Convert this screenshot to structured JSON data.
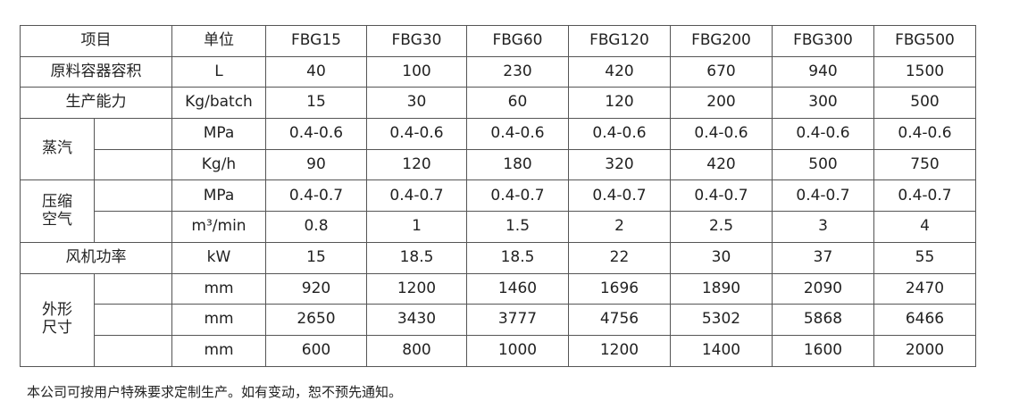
{
  "table": {
    "header": [
      "项目",
      "单位",
      "FBG15",
      "FBG30",
      "FBG60",
      "FBG120",
      "FBG200",
      "FBG300",
      "FBG500"
    ],
    "sections": [
      {
        "label": [
          "原料容器容积"
        ],
        "rows": [
          {
            "unit": "L",
            "values": [
              "40",
              "100",
              "230",
              "420",
              "670",
              "940",
              "1500"
            ]
          }
        ]
      },
      {
        "label": [
          "生产能力"
        ],
        "rows": [
          {
            "unit": "Kg/batch",
            "values": [
              "15",
              "30",
              "60",
              "120",
              "200",
              "300",
              "500"
            ]
          }
        ]
      },
      {
        "label": [
          "蒸汽"
        ],
        "rows": [
          {
            "unit": "MPa",
            "values": [
              "0.4-0.6",
              "0.4-0.6",
              "0.4-0.6",
              "0.4-0.6",
              "0.4-0.6",
              "0.4-0.6",
              "0.4-0.6"
            ]
          },
          {
            "unit": "Kg/h",
            "values": [
              "90",
              "120",
              "180",
              "320",
              "420",
              "500",
              "750"
            ]
          }
        ]
      },
      {
        "label": [
          "压缩",
          "空气"
        ],
        "rows": [
          {
            "unit": "MPa",
            "values": [
              "0.4-0.7",
              "0.4-0.7",
              "0.4-0.7",
              "0.4-0.7",
              "0.4-0.7",
              "0.4-0.7",
              "0.4-0.7"
            ]
          },
          {
            "unit": "m³/min",
            "values": [
              "0.8",
              "1",
              "1.5",
              "2",
              "2.5",
              "3",
              "4"
            ]
          }
        ]
      },
      {
        "label": [
          "风机功率"
        ],
        "rows": [
          {
            "unit": "kW",
            "values": [
              "15",
              "18.5",
              "18.5",
              "22",
              "30",
              "37",
              "55"
            ]
          }
        ]
      },
      {
        "label": [
          "外形",
          "尺寸"
        ],
        "rows": [
          {
            "unit": "mm",
            "values": [
              "920",
              "1200",
              "1460",
              "1696",
              "1890",
              "2090",
              "2470"
            ]
          },
          {
            "unit": "mm",
            "values": [
              "2650",
              "3430",
              "3777",
              "4756",
              "5302",
              "5868",
              "6466"
            ]
          },
          {
            "unit": "mm",
            "values": [
              "600",
              "800",
              "1000",
              "1200",
              "1400",
              "1600",
              "2000"
            ]
          }
        ]
      }
    ]
  },
  "footnote": "本公司可按用户特殊要求定制生产。如有变动，恕不预先通知。"
}
